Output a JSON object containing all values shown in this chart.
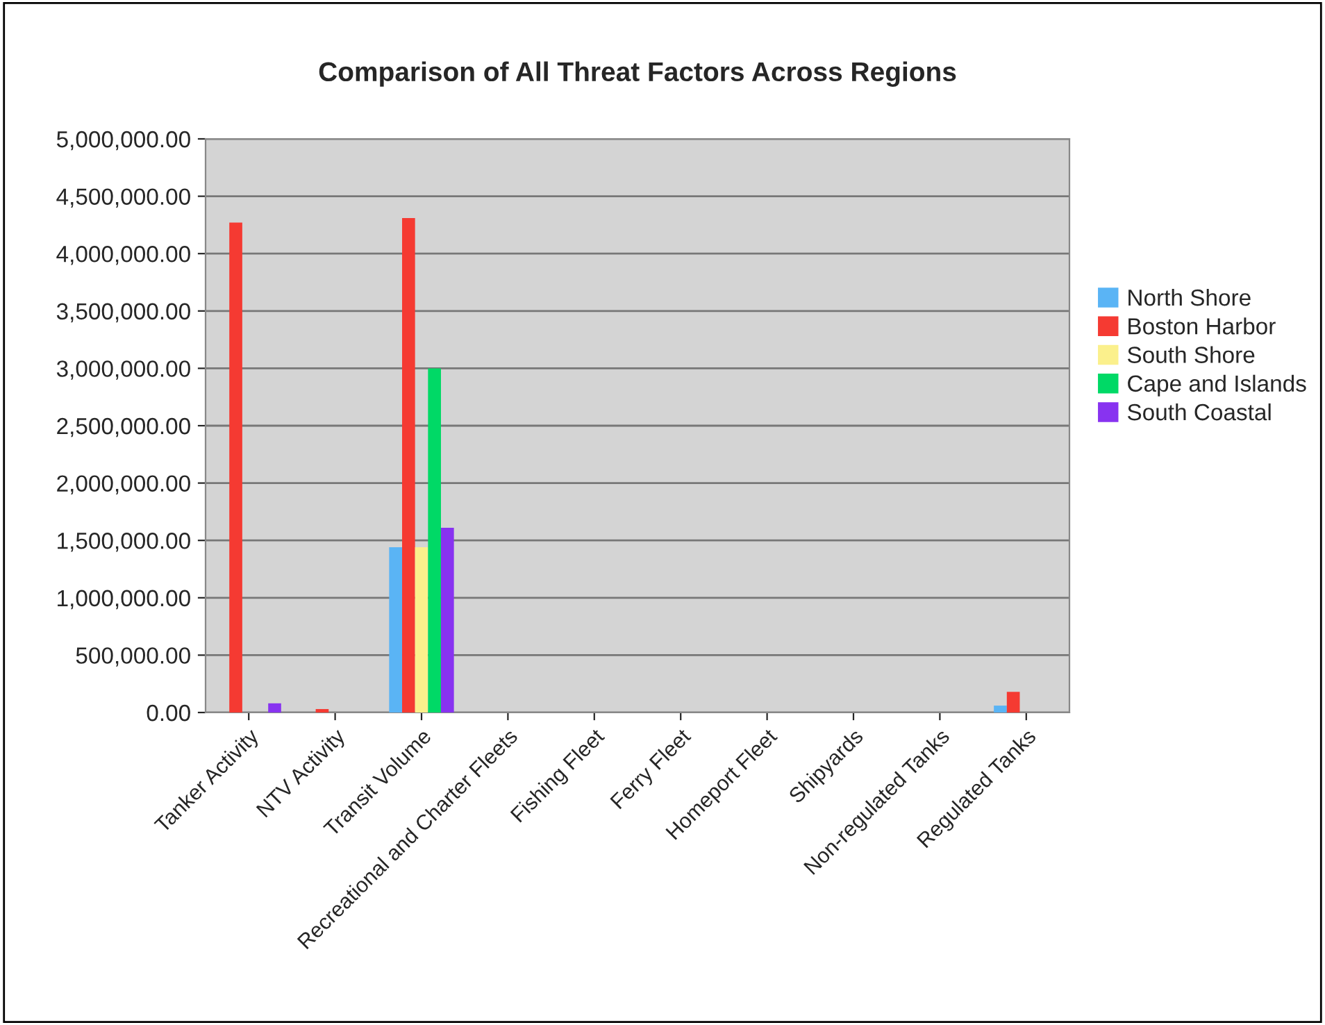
{
  "chart_data": {
    "type": "bar",
    "title": "Comparison of All Threat Factors Across Regions",
    "categories": [
      "Tanker Activity",
      "NTV Activity",
      "Transit Volume",
      "Recreational and Charter Fleets",
      "Fishing Fleet",
      "Ferry Fleet",
      "Homeport Fleet",
      "Shipyards",
      "Non-regulated Tanks",
      "Regulated Tanks"
    ],
    "series": [
      {
        "name": "North Shore",
        "color": "#5ab4f5",
        "values": [
          null,
          null,
          1440000,
          null,
          null,
          null,
          null,
          null,
          null,
          60000
        ]
      },
      {
        "name": "Boston Harbor",
        "color": "#f53a32",
        "values": [
          4270000,
          30000,
          4310000,
          null,
          null,
          null,
          null,
          null,
          null,
          180000
        ]
      },
      {
        "name": "South Shore",
        "color": "#fbf08c",
        "values": [
          null,
          null,
          1440000,
          null,
          null,
          null,
          null,
          null,
          null,
          null
        ]
      },
      {
        "name": "Cape and Islands",
        "color": "#00d966",
        "values": [
          null,
          null,
          3000000,
          null,
          null,
          null,
          null,
          null,
          null,
          null
        ]
      },
      {
        "name": "South Coastal",
        "color": "#8833f0",
        "values": [
          80000,
          null,
          1610000,
          null,
          null,
          null,
          null,
          null,
          null,
          null
        ]
      }
    ],
    "ylim": [
      0,
      5000000
    ],
    "yticks": [
      {
        "value": 0,
        "label": "0.00"
      },
      {
        "value": 500000,
        "label": "500,000.00"
      },
      {
        "value": 1000000,
        "label": "1,000,000.00"
      },
      {
        "value": 1500000,
        "label": "1,500,000.00"
      },
      {
        "value": 2000000,
        "label": "2,000,000.00"
      },
      {
        "value": 2500000,
        "label": "2,500,000.00"
      },
      {
        "value": 3000000,
        "label": "3,000,000.00"
      },
      {
        "value": 3500000,
        "label": "3,500,000.00"
      },
      {
        "value": 4000000,
        "label": "4,000,000.00"
      },
      {
        "value": 4500000,
        "label": "4,500,000.00"
      },
      {
        "value": 5000000,
        "label": "5,000,000.00"
      }
    ],
    "grid": "y",
    "legend": "right"
  }
}
